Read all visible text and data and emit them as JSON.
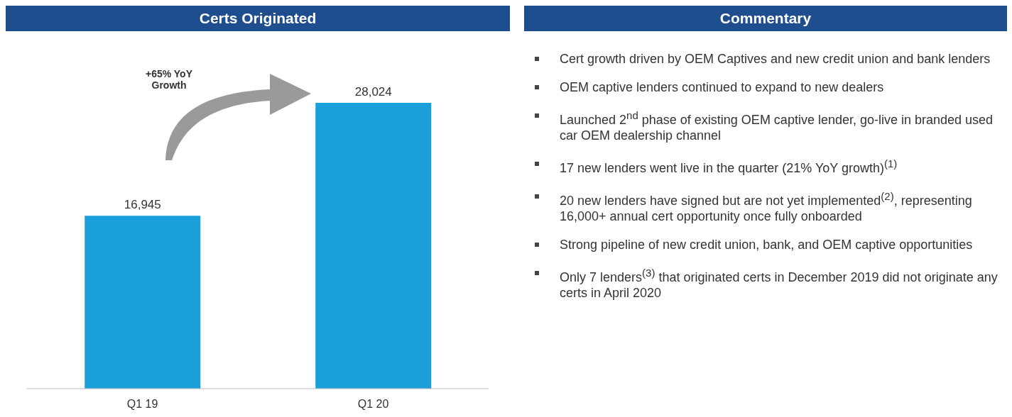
{
  "chart_data": [
    {
      "type": "bar",
      "title": "Certs Originated",
      "categories": [
        "Q1 19",
        "Q1 20"
      ],
      "values": [
        16945,
        28024
      ],
      "color": "#1a9fdb",
      "value_labels": [
        "16,945",
        "28,024"
      ],
      "annotations": [
        "+65% YoY Growth"
      ]
    },
    {
      "type": "other",
      "title": "Commentary",
      "annotations": [
        "Cert growth driven by OEM Captives and new credit union and bank lenders",
        "OEM captive lenders continued to expand to new dealers",
        "Launched 2$^{nd}$ phase of existing OEM captive lender, go-live in branded used car OEM dealership channel",
        "17 new lenders went live in the quarter (21% YoY growth)$^{(1)}$",
        "20 new lenders have signed but are not yet implemented$^{(2)}$, representing 16,000+ annual cert opportunity once fully onboarded",
        "Strong pipeline of new credit union, bank, and OEM captive opportunities",
        "Only 7 lenders$^{(3)}$ that originated certs in December 2019 did not originate any certs in April 2020"
      ]
    }
  ]
}
